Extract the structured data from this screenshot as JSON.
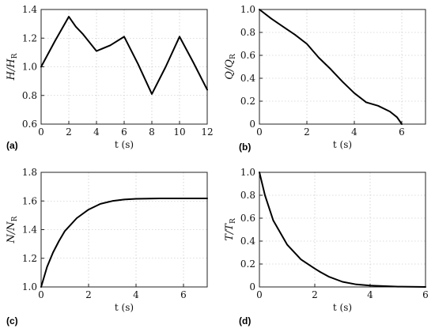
{
  "chart_data": [
    {
      "type": "line",
      "panel_label": "(a)",
      "xlabel": "t (s)",
      "ylabel": "H/H",
      "ylabel_sub": "R",
      "xlim": [
        0,
        12
      ],
      "ylim": [
        0.6,
        1.4
      ],
      "xticks": [
        "0",
        "2",
        "4",
        "6",
        "8",
        "10",
        "12"
      ],
      "yticks": [
        "0.6",
        "0.8",
        "1.0",
        "1.2",
        "1.4"
      ],
      "grid": true,
      "x": [
        0,
        1,
        2,
        2.5,
        3,
        4,
        5,
        6,
        7,
        8,
        9,
        10,
        11,
        12
      ],
      "y": [
        1.0,
        1.18,
        1.35,
        1.28,
        1.23,
        1.11,
        1.15,
        1.21,
        1.02,
        0.81,
        1.0,
        1.21,
        1.03,
        0.84
      ]
    },
    {
      "type": "line",
      "panel_label": "(b)",
      "xlabel": "t (s)",
      "ylabel": "Q/Q",
      "ylabel_sub": "R",
      "xlim": [
        0,
        7
      ],
      "ylim": [
        0,
        1.0
      ],
      "xticks": [
        "0",
        "2",
        "4",
        "6"
      ],
      "yticks": [
        "0",
        "0.2",
        "0.4",
        "0.6",
        "0.8",
        "1.0"
      ],
      "grid": true,
      "x": [
        0,
        0.5,
        1,
        1.5,
        2,
        2.5,
        3,
        3.5,
        4,
        4.5,
        5,
        5.5,
        5.8,
        6
      ],
      "y": [
        1.0,
        0.92,
        0.85,
        0.78,
        0.7,
        0.58,
        0.48,
        0.37,
        0.27,
        0.19,
        0.16,
        0.11,
        0.06,
        0.0
      ]
    },
    {
      "type": "line",
      "panel_label": "(c)",
      "xlabel": "t (s)",
      "ylabel": "N/N",
      "ylabel_sub": "R",
      "xlim": [
        0,
        7
      ],
      "ylim": [
        1.0,
        1.8
      ],
      "xticks": [
        "0",
        "2",
        "4",
        "6"
      ],
      "yticks": [
        "1.0",
        "1.2",
        "1.4",
        "1.6",
        "1.8"
      ],
      "grid": true,
      "x": [
        0,
        0.25,
        0.5,
        0.75,
        1,
        1.5,
        2,
        2.5,
        3,
        3.5,
        4,
        5,
        6,
        7
      ],
      "y": [
        1.0,
        1.14,
        1.24,
        1.32,
        1.39,
        1.48,
        1.54,
        1.58,
        1.6,
        1.61,
        1.615,
        1.618,
        1.618,
        1.618
      ]
    },
    {
      "type": "line",
      "panel_label": "(d)",
      "xlabel": "t (s)",
      "ylabel": "T/T",
      "ylabel_sub": "R",
      "xlim": [
        0,
        6
      ],
      "ylim": [
        0,
        1.0
      ],
      "xticks": [
        "0",
        "2",
        "4",
        "6"
      ],
      "yticks": [
        "0",
        "0.2",
        "0.4",
        "0.6",
        "0.8",
        "1.0"
      ],
      "grid": true,
      "x": [
        0,
        0.2,
        0.5,
        1,
        1.5,
        2,
        2.2,
        2.5,
        3,
        3.5,
        4,
        5,
        6
      ],
      "y": [
        1.0,
        0.8,
        0.58,
        0.37,
        0.24,
        0.16,
        0.13,
        0.09,
        0.045,
        0.022,
        0.012,
        0.003,
        0.0
      ]
    }
  ]
}
